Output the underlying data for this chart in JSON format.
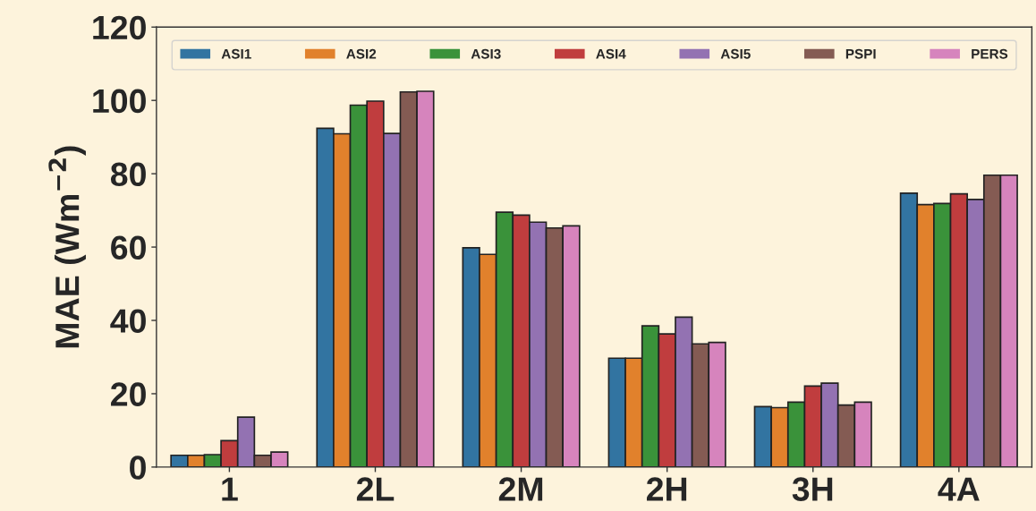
{
  "chart_data": {
    "type": "bar",
    "ylabel": "MAE (Wm$^{−2}$)",
    "categories": [
      "1",
      "2L",
      "2M",
      "2H",
      "3H",
      "4A"
    ],
    "series": [
      {
        "name": "ASI1",
        "color": "#3274a1",
        "values": [
          3.2,
          92.4,
          59.8,
          29.7,
          16.5,
          74.7
        ]
      },
      {
        "name": "ASI2",
        "color": "#e1812c",
        "values": [
          3.2,
          90.9,
          58.0,
          29.7,
          16.2,
          71.6
        ]
      },
      {
        "name": "ASI3",
        "color": "#3a923a",
        "values": [
          3.4,
          98.7,
          69.5,
          38.5,
          17.7,
          71.9
        ]
      },
      {
        "name": "ASI4",
        "color": "#c03d3e",
        "values": [
          7.2,
          99.8,
          68.7,
          36.3,
          22.1,
          74.5
        ]
      },
      {
        "name": "ASI5",
        "color": "#9372b2",
        "values": [
          13.6,
          91.0,
          66.8,
          40.9,
          22.9,
          73.0
        ]
      },
      {
        "name": "PSPI",
        "color": "#845b53",
        "values": [
          3.2,
          102.3,
          65.2,
          33.6,
          16.9,
          79.6
        ]
      },
      {
        "name": "PERS",
        "color": "#d684bd",
        "values": [
          4.1,
          102.5,
          65.8,
          34.0,
          17.7,
          79.6
        ]
      }
    ],
    "ylim": [
      0,
      120
    ],
    "yticks": [
      0,
      20,
      40,
      60,
      80,
      100,
      120
    ],
    "grid": false,
    "legend": "top"
  }
}
